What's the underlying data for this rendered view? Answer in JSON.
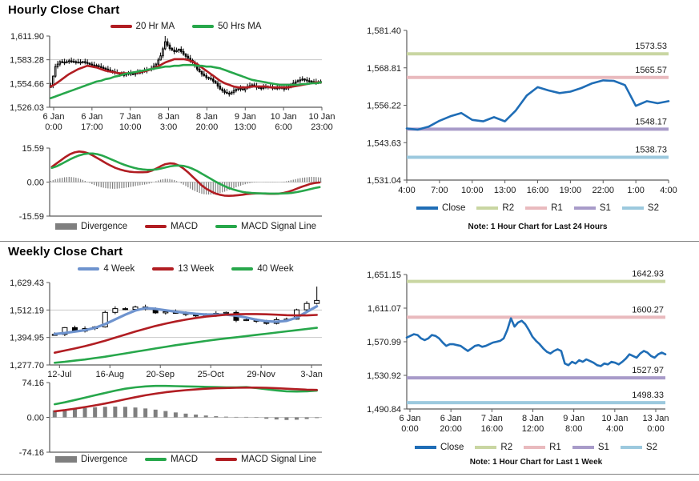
{
  "colors": {
    "red": "#b11d22",
    "green": "#27a74b",
    "close": "#1f6db6",
    "blue_ma": "#6e93ce",
    "r2": "#c9d6a2",
    "r1": "#e9babe",
    "s1": "#a89bc9",
    "s2": "#9cc9de",
    "divergence": "#7f7f7f",
    "grid": "#c8c8c8",
    "axis": "#5a5a5a",
    "candle": "#000000",
    "text": "#1a1a1a"
  },
  "chart_data": [
    {
      "id": "hourly_price",
      "type": "candlestick",
      "title": "Hourly Close Chart",
      "ylim": [
        1526.03,
        1611.9
      ],
      "yticks": [
        {
          "v": 1611.9,
          "label": "1,611.90"
        },
        {
          "v": 1583.28,
          "label": "1,583.28"
        },
        {
          "v": 1554.66,
          "label": "1,554.66"
        },
        {
          "v": 1526.03,
          "label": "1,526.03"
        }
      ],
      "xlabels": [
        {
          "l1": "6 Jan",
          "l2": "0:00"
        },
        {
          "l1": "6 Jan",
          "l2": "17:00"
        },
        {
          "l1": "7 Jan",
          "l2": "10:00"
        },
        {
          "l1": "8 Jan",
          "l2": "3:00"
        },
        {
          "l1": "8 Jan",
          "l2": "20:00"
        },
        {
          "l1": "9 Jan",
          "l2": "13:00"
        },
        {
          "l1": "10 Jan",
          "l2": "6:00"
        },
        {
          "l1": "10 Jan",
          "l2": "23:00"
        }
      ],
      "close": [
        1552,
        1575,
        1581,
        1580,
        1582,
        1581,
        1580,
        1581,
        1579,
        1577,
        1576,
        1574,
        1572,
        1570,
        1568,
        1566,
        1565,
        1567,
        1566,
        1568,
        1569,
        1571,
        1573,
        1578,
        1588,
        1605,
        1597,
        1593,
        1596,
        1590,
        1585,
        1580,
        1572,
        1566,
        1562,
        1560,
        1555,
        1548,
        1544,
        1542,
        1546,
        1549,
        1547,
        1551,
        1553,
        1550,
        1549,
        1551,
        1550,
        1549,
        1550,
        1548,
        1551,
        1555,
        1558,
        1560,
        1558,
        1557,
        1556,
        1557
      ],
      "spikes": [
        {
          "i": 25,
          "high": 1611.9
        }
      ],
      "series": [
        {
          "name": "20 Hr MA",
          "color": "red",
          "values": [
            1551,
            1554,
            1558,
            1562,
            1566,
            1569,
            1572,
            1574,
            1576,
            1575,
            1574,
            1572,
            1570,
            1569,
            1568,
            1567,
            1567,
            1567,
            1568,
            1568,
            1569,
            1570,
            1572,
            1574,
            1577,
            1580,
            1582,
            1584,
            1584,
            1584,
            1583,
            1581,
            1578,
            1574,
            1570,
            1566,
            1562,
            1558,
            1555,
            1553,
            1551,
            1550,
            1550,
            1550,
            1551,
            1551,
            1551,
            1551,
            1550,
            1550,
            1550,
            1550,
            1550,
            1551,
            1552,
            1553,
            1554,
            1555,
            1556,
            1556
          ]
        },
        {
          "name": "50 Hrs MA",
          "color": "green",
          "values": [
            1537,
            1539,
            1541,
            1543,
            1545,
            1547,
            1549,
            1551,
            1553,
            1555,
            1557,
            1558,
            1560,
            1561,
            1563,
            1564,
            1566,
            1567,
            1568,
            1569,
            1570,
            1571,
            1572,
            1573,
            1574,
            1575,
            1575,
            1576,
            1576,
            1577,
            1577,
            1577,
            1576,
            1576,
            1575,
            1575,
            1574,
            1573,
            1571,
            1569,
            1567,
            1565,
            1563,
            1561,
            1559,
            1558,
            1557,
            1556,
            1555,
            1554,
            1553,
            1553,
            1553,
            1553,
            1553,
            1554,
            1554,
            1555,
            1555,
            1556
          ]
        }
      ]
    },
    {
      "id": "hourly_macd",
      "type": "line+bar",
      "ylim": [
        -15.59,
        15.59
      ],
      "yticks": [
        {
          "v": 15.59,
          "label": "15.59"
        },
        {
          "v": 0,
          "label": "0.00"
        },
        {
          "v": -15.59,
          "label": "-15.59"
        }
      ],
      "legend": [
        "Divergence",
        "MACD",
        "MACD Signal Line"
      ],
      "series": [
        {
          "name": "MACD",
          "color": "red",
          "values": [
            7,
            8.5,
            10,
            11.5,
            12.8,
            13.6,
            14,
            13.8,
            13.2,
            12.2,
            11,
            9.8,
            8.6,
            7.5,
            6.5,
            5.8,
            5.2,
            4.8,
            4.6,
            4.5,
            4.5,
            4.6,
            5.2,
            6.2,
            7.3,
            8.2,
            8.6,
            8.4,
            7.6,
            6.2,
            4.5,
            2.5,
            0.5,
            -1.5,
            -3,
            -4.2,
            -5.2,
            -5.8,
            -6.2,
            -6.3,
            -6.2,
            -6,
            -5.8,
            -5.5,
            -5.3,
            -5.2,
            -5.2,
            -5.3,
            -5.4,
            -5.4,
            -5.3,
            -5,
            -4.5,
            -3.8,
            -3,
            -2.2,
            -1.5,
            -0.8,
            -0.4,
            -0.2
          ]
        },
        {
          "name": "MACD Signal Line",
          "color": "green",
          "values": [
            6.5,
            7.2,
            8.2,
            9.3,
            10.4,
            11.4,
            12.2,
            12.8,
            13.1,
            13.1,
            12.8,
            12.2,
            11.4,
            10.5,
            9.6,
            8.7,
            7.9,
            7.2,
            6.6,
            6.1,
            5.8,
            5.6,
            5.6,
            5.8,
            6.2,
            6.7,
            7.2,
            7.5,
            7.6,
            7.4,
            6.9,
            6.1,
            5.1,
            3.9,
            2.7,
            1.5,
            0.3,
            -0.8,
            -1.8,
            -2.7,
            -3.4,
            -4,
            -4.5,
            -4.8,
            -5,
            -5.1,
            -5.2,
            -5.2,
            -5.3,
            -5.3,
            -5.3,
            -5.2,
            -5.1,
            -4.9,
            -4.6,
            -4.2,
            -3.7,
            -3.2,
            -2.7,
            -2.3
          ]
        }
      ]
    },
    {
      "id": "hourly_pivot",
      "type": "line",
      "ylim": [
        1531.04,
        1581.4
      ],
      "yticks": [
        {
          "v": 1581.4,
          "label": "1,581.40"
        },
        {
          "v": 1568.81,
          "label": "1,568.81"
        },
        {
          "v": 1556.22,
          "label": "1,556.22"
        },
        {
          "v": 1543.63,
          "label": "1,543.63"
        },
        {
          "v": 1531.04,
          "label": "1,531.04"
        }
      ],
      "xlabels": [
        "4:00",
        "7:00",
        "10:00",
        "13:00",
        "16:00",
        "19:00",
        "22:00",
        "1:00",
        "4:00"
      ],
      "close": [
        1548.4,
        1548.0,
        1549.0,
        1551.0,
        1552.5,
        1553.6,
        1551.3,
        1550.8,
        1552.2,
        1550.8,
        1554.5,
        1559.5,
        1562.3,
        1561.2,
        1560.3,
        1560.8,
        1562.0,
        1563.6,
        1564.6,
        1564.4,
        1563.0,
        1556.0,
        1557.6,
        1556.9,
        1557.6
      ],
      "pivots": [
        {
          "name": "R2",
          "v": 1573.53,
          "label": "1573.53",
          "color": "r2"
        },
        {
          "name": "R1",
          "v": 1565.57,
          "label": "1565.57",
          "color": "r1"
        },
        {
          "name": "S1",
          "v": 1548.17,
          "label": "1548.17",
          "color": "s1"
        },
        {
          "name": "S2",
          "v": 1538.73,
          "label": "1538.73",
          "color": "s2"
        }
      ],
      "legend": [
        "Close",
        "R2",
        "R1",
        "S1",
        "S2"
      ],
      "note": "Note: 1 Hour Chart for Last 24 Hours"
    },
    {
      "id": "weekly_price",
      "type": "candlestick",
      "title": "Weekly Close Chart",
      "ylim": [
        1277.7,
        1629.43
      ],
      "yticks": [
        {
          "v": 1629.43,
          "label": "1,629.43"
        },
        {
          "v": 1512.19,
          "label": "1,512.19"
        },
        {
          "v": 1394.95,
          "label": "1,394.95"
        },
        {
          "v": 1277.7,
          "label": "1,277.70"
        }
      ],
      "xlabels": [
        "12-Jul",
        "16-Aug",
        "20-Sep",
        "25-Oct",
        "29-Nov",
        "3-Jan"
      ],
      "label_idx": [
        0,
        5,
        10,
        15,
        20,
        25
      ],
      "close": [
        1408,
        1437,
        1422,
        1433,
        1440,
        1502,
        1518,
        1515,
        1525,
        1516,
        1500,
        1505,
        1498,
        1493,
        1487,
        1490,
        1498,
        1502,
        1468,
        1471,
        1464,
        1455,
        1471,
        1473,
        1513,
        1540,
        1553
      ],
      "spikes": [
        {
          "i": 26,
          "high": 1612
        }
      ],
      "series": [
        {
          "name": "4 Week",
          "color": "blue_ma",
          "values": [
            1410,
            1414,
            1420,
            1426,
            1436,
            1452,
            1472,
            1492,
            1510,
            1520,
            1517,
            1511,
            1505,
            1500,
            1496,
            1493,
            1493,
            1492,
            1488,
            1480,
            1471,
            1464,
            1462,
            1466,
            1480,
            1504,
            1528
          ]
        },
        {
          "name": "13 Week",
          "color": "red",
          "values": [
            1330,
            1339,
            1348,
            1358,
            1369,
            1381,
            1394,
            1407,
            1420,
            1432,
            1444,
            1454,
            1463,
            1471,
            1478,
            1484,
            1488,
            1492,
            1494,
            1495,
            1495,
            1494,
            1492,
            1490,
            1489,
            1489,
            1491
          ]
        },
        {
          "name": "40 Week",
          "color": "green",
          "values": [
            1287,
            1291,
            1296,
            1301,
            1307,
            1313,
            1320,
            1327,
            1334,
            1341,
            1348,
            1355,
            1362,
            1368,
            1374,
            1380,
            1386,
            1391,
            1396,
            1401,
            1406,
            1411,
            1416,
            1421,
            1426,
            1431,
            1436
          ]
        }
      ]
    },
    {
      "id": "weekly_macd",
      "type": "line+bar",
      "ylim": [
        -74.16,
        74.16
      ],
      "yticks": [
        {
          "v": 74.16,
          "label": "74.16"
        },
        {
          "v": 0,
          "label": "0.00"
        },
        {
          "v": -74.16,
          "label": "-74.16"
        }
      ],
      "legend": [
        "Divergence",
        "MACD",
        "MACD Signal Line"
      ],
      "series": [
        {
          "name": "MACD",
          "color": "green",
          "values": [
            28,
            32,
            37,
            42,
            47,
            52,
            57,
            61,
            64,
            66,
            67,
            67,
            66.5,
            66,
            65.5,
            65,
            64.5,
            64,
            64,
            64.5,
            62.5,
            60,
            57.5,
            55.5,
            55,
            55.5,
            57
          ]
        },
        {
          "name": "MACD Signal Line",
          "color": "red",
          "values": [
            13,
            15.5,
            18.5,
            22,
            25.5,
            29.5,
            34,
            38.5,
            43,
            47,
            50.5,
            53.5,
            56,
            58,
            59.5,
            61,
            62,
            62.5,
            63,
            63.5,
            63.5,
            63,
            62,
            61,
            60,
            59,
            58.5
          ]
        }
      ]
    },
    {
      "id": "weekly_pivot",
      "type": "line",
      "ylim": [
        1490.84,
        1651.15
      ],
      "yticks": [
        {
          "v": 1651.15,
          "label": "1,651.15"
        },
        {
          "v": 1611.07,
          "label": "1,611.07"
        },
        {
          "v": 1570.99,
          "label": "1,570.99"
        },
        {
          "v": 1530.92,
          "label": "1,530.92"
        },
        {
          "v": 1490.84,
          "label": "1,490.84"
        }
      ],
      "xlabels2": [
        {
          "l1": "6 Jan",
          "l2": "0:00"
        },
        {
          "l1": "6 Jan",
          "l2": "20:00"
        },
        {
          "l1": "7 Jan",
          "l2": "16:00"
        },
        {
          "l1": "8 Jan",
          "l2": "12:00"
        },
        {
          "l1": "9 Jan",
          "l2": "8:00"
        },
        {
          "l1": "10 Jan",
          "l2": "4:00"
        },
        {
          "l1": "13 Jan",
          "l2": "0:00"
        }
      ],
      "close": [
        1576,
        1578,
        1580,
        1579,
        1575,
        1573,
        1575,
        1579,
        1578,
        1575,
        1570,
        1566,
        1568,
        1568,
        1567,
        1566,
        1563,
        1560,
        1563,
        1566,
        1567,
        1565,
        1566,
        1568,
        1570,
        1571,
        1572,
        1575,
        1585,
        1599,
        1589,
        1594,
        1596,
        1592,
        1585,
        1577,
        1572,
        1568,
        1563,
        1559,
        1557,
        1560,
        1562,
        1560,
        1545,
        1543,
        1547,
        1545,
        1549,
        1547,
        1550,
        1548,
        1546,
        1543,
        1542,
        1545,
        1544,
        1547,
        1546,
        1544,
        1547,
        1551,
        1556,
        1554,
        1552,
        1557,
        1560,
        1558,
        1554,
        1552,
        1556,
        1558,
        1556
      ],
      "pivots": [
        {
          "name": "R2",
          "v": 1642.93,
          "label": "1642.93",
          "color": "r2"
        },
        {
          "name": "R1",
          "v": 1600.27,
          "label": "1600.27",
          "color": "r1"
        },
        {
          "name": "S1",
          "v": 1527.97,
          "label": "1527.97",
          "color": "s1"
        },
        {
          "name": "S2",
          "v": 1498.33,
          "label": "1498.33",
          "color": "s2"
        }
      ],
      "legend": [
        "Close",
        "R2",
        "R1",
        "S1",
        "S2"
      ],
      "note": "Note: 1 Hour Chart for Last 1 Week"
    }
  ]
}
